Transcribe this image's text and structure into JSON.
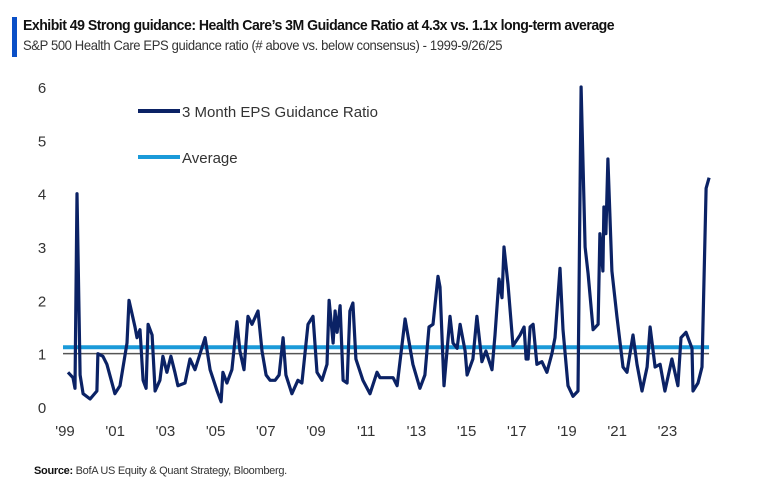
{
  "header": {
    "title": "Exhibit 49 Strong guidance: Health Care’s 3M Guidance Ratio at 4.3x vs. 1.1x long-term average",
    "subtitle": "S&P 500 Health Care EPS guidance ratio (# above vs. below consensus) - 1999-9/26/25"
  },
  "source": {
    "label": "Source:",
    "text": " BofA US Equity & Quant Strategy, Bloomberg."
  },
  "colors": {
    "accent": "#0a4fc7",
    "series": "#0b2265",
    "average": "#1a9ad9",
    "reference": "#555555"
  },
  "chart_data": {
    "type": "line",
    "title": "S&P 500 Health Care EPS guidance ratio (# above vs. below consensus) - 1999-9/26/25",
    "xlabel": "",
    "ylabel": "",
    "xlim": [
      1999,
      2025.7
    ],
    "ylim": [
      0,
      6
    ],
    "yticks": [
      0,
      1,
      2,
      3,
      4,
      5,
      6
    ],
    "xticks": [
      {
        "value": 1999,
        "label": "'99"
      },
      {
        "value": 2001,
        "label": "'01"
      },
      {
        "value": 2003,
        "label": "'03"
      },
      {
        "value": 2005,
        "label": "'05"
      },
      {
        "value": 2007,
        "label": "'07"
      },
      {
        "value": 2009,
        "label": "'09"
      },
      {
        "value": 2011,
        "label": "'11"
      },
      {
        "value": 2013,
        "label": "'13"
      },
      {
        "value": 2015,
        "label": "'15"
      },
      {
        "value": 2017,
        "label": "'17"
      },
      {
        "value": 2019,
        "label": "'19"
      },
      {
        "value": 2021,
        "label": "'21"
      },
      {
        "value": 2023,
        "label": "'23"
      }
    ],
    "grid": false,
    "legend_placement": "top-left",
    "reference_line": 1.0,
    "series": [
      {
        "name": "3 Month EPS Guidance Ratio",
        "x": [
          1999.12,
          1999.32,
          1999.4,
          1999.48,
          1999.6,
          1999.72,
          2000.0,
          2000.27,
          2000.31,
          2000.51,
          2000.67,
          2000.99,
          2001.19,
          2001.47,
          2001.55,
          2001.79,
          2001.87,
          2001.99,
          2002.11,
          2002.23,
          2002.31,
          2002.47,
          2002.59,
          2002.78,
          2002.9,
          2003.06,
          2003.22,
          2003.38,
          2003.5,
          2003.78,
          2003.98,
          2004.18,
          2004.58,
          2004.78,
          2005.06,
          2005.22,
          2005.29,
          2005.45,
          2005.65,
          2005.85,
          2005.97,
          2006.13,
          2006.29,
          2006.45,
          2006.69,
          2006.85,
          2007.01,
          2007.17,
          2007.37,
          2007.53,
          2007.69,
          2007.8,
          2008.04,
          2008.28,
          2008.44,
          2008.68,
          2008.88,
          2009.04,
          2009.24,
          2009.44,
          2009.52,
          2009.68,
          2009.76,
          2009.84,
          2009.96,
          2010.08,
          2010.24,
          2010.35,
          2010.47,
          2010.59,
          2010.87,
          2011.15,
          2011.43,
          2011.55,
          2012.07,
          2012.23,
          2012.55,
          2012.86,
          2013.14,
          2013.34,
          2013.5,
          2013.66,
          2013.86,
          2013.94,
          2014.1,
          2014.34,
          2014.46,
          2014.62,
          2014.74,
          2014.94,
          2015.02,
          2015.25,
          2015.41,
          2015.61,
          2015.77,
          2016.01,
          2016.13,
          2016.29,
          2016.41,
          2016.49,
          2016.65,
          2016.85,
          2017.13,
          2017.29,
          2017.37,
          2017.45,
          2017.53,
          2017.65,
          2017.8,
          2018.0,
          2018.2,
          2018.4,
          2018.52,
          2018.72,
          2018.84,
          2019.04,
          2019.24,
          2019.44,
          2019.56,
          2019.72,
          2019.84,
          2020.04,
          2020.24,
          2020.31,
          2020.43,
          2020.47,
          2020.55,
          2020.63,
          2020.79,
          2020.99,
          2021.23,
          2021.39,
          2021.63,
          2021.79,
          2021.99,
          2022.19,
          2022.31,
          2022.51,
          2022.71,
          2022.9,
          2023.18,
          2023.42,
          2023.54,
          2023.74,
          2023.98,
          2024.02,
          2024.22,
          2024.38,
          2024.54,
          2024.66
        ],
        "values": [
          0.65,
          0.55,
          0.35,
          4.0,
          0.6,
          0.25,
          0.15,
          0.3,
          1.0,
          0.95,
          0.8,
          0.25,
          0.4,
          1.2,
          2.0,
          1.5,
          1.3,
          1.45,
          0.5,
          0.35,
          1.55,
          1.35,
          0.3,
          0.5,
          0.95,
          0.65,
          0.95,
          0.65,
          0.4,
          0.45,
          0.9,
          0.7,
          1.3,
          0.7,
          0.3,
          0.1,
          0.65,
          0.45,
          0.7,
          1.6,
          1.05,
          0.7,
          1.7,
          1.55,
          1.8,
          1.05,
          0.6,
          0.5,
          0.5,
          0.6,
          1.3,
          0.6,
          0.25,
          0.5,
          0.45,
          1.55,
          1.7,
          0.65,
          0.5,
          0.8,
          2.0,
          1.2,
          1.8,
          1.4,
          1.9,
          0.5,
          0.45,
          1.8,
          1.95,
          0.9,
          0.5,
          0.25,
          0.65,
          0.55,
          0.55,
          0.4,
          1.65,
          0.8,
          0.35,
          0.6,
          1.5,
          1.55,
          2.45,
          2.25,
          0.4,
          1.7,
          1.2,
          1.1,
          1.55,
          1.05,
          0.6,
          0.9,
          1.7,
          0.85,
          1.05,
          0.7,
          1.35,
          2.4,
          2.05,
          3.0,
          2.3,
          1.15,
          1.35,
          1.5,
          0.9,
          0.9,
          1.5,
          1.55,
          0.8,
          0.85,
          0.65,
          1.0,
          1.3,
          2.6,
          1.45,
          0.4,
          0.2,
          0.3,
          6.0,
          3.0,
          2.5,
          1.45,
          1.55,
          3.25,
          2.55,
          3.75,
          3.25,
          4.65,
          2.55,
          1.7,
          0.75,
          0.65,
          1.35,
          0.8,
          0.3,
          0.75,
          1.5,
          0.75,
          0.8,
          0.3,
          0.9,
          0.4,
          1.3,
          1.4,
          1.1,
          0.3,
          0.45,
          0.75,
          4.1,
          4.3
        ]
      },
      {
        "name": "Average",
        "constant": 1.12
      }
    ]
  }
}
